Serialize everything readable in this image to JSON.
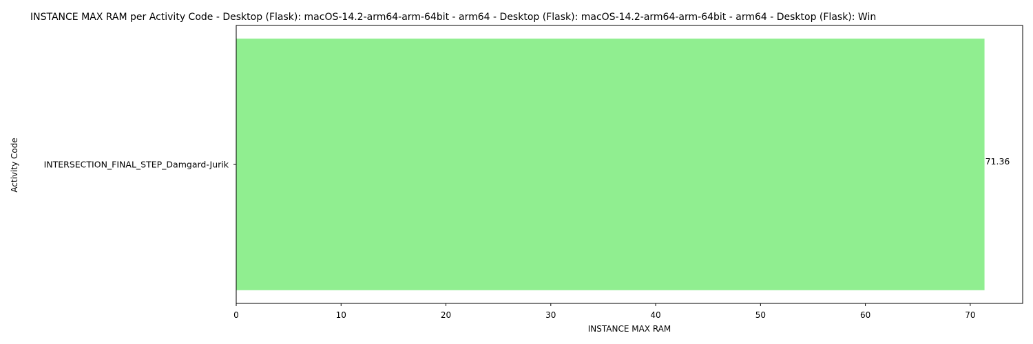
{
  "chart_data": {
    "type": "bar",
    "orientation": "horizontal",
    "title": "INSTANCE MAX RAM per Activity Code - Desktop (Flask): macOS-14.2-arm64-arm-64bit - arm64 - Desktop (Flask): macOS-14.2-arm64-arm-64bit - arm64 - Desktop (Flask): Win",
    "xlabel": "INSTANCE MAX RAM",
    "ylabel": "Activity Code",
    "categories": [
      "INTERSECTION_FINAL_STEP_Damgard-Jurik"
    ],
    "values": [
      71.36
    ],
    "data_labels": [
      "71.36"
    ],
    "xlim": [
      0,
      75
    ],
    "xticks": [
      0,
      10,
      20,
      30,
      40,
      50,
      60,
      70
    ],
    "bar_color": "#90ee90",
    "grid": false
  }
}
